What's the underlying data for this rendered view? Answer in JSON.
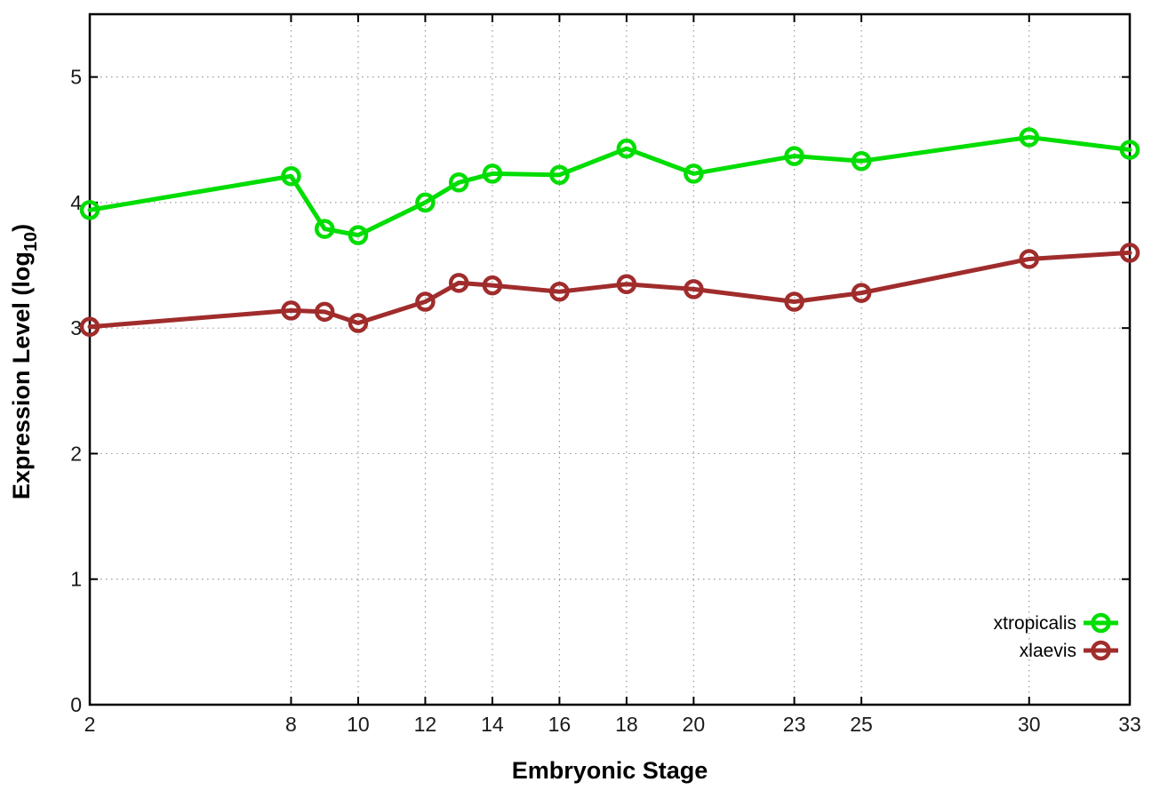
{
  "chart_data": {
    "type": "line",
    "title": "",
    "xlabel": "Embryonic Stage",
    "ylabel_plain": "Expression Level (log10)",
    "ylabel_parts": {
      "prefix": "Expression Level (log",
      "subscript": "10",
      "suffix": ")"
    },
    "x": [
      2,
      8,
      9,
      10,
      12,
      13,
      14,
      16,
      18,
      20,
      23,
      25,
      30,
      33
    ],
    "series": [
      {
        "name": "xtropicalis",
        "color": "#00dd00",
        "values": [
          3.94,
          4.21,
          3.79,
          3.74,
          4.0,
          4.16,
          4.23,
          4.22,
          4.43,
          4.23,
          4.37,
          4.33,
          4.52,
          4.42
        ]
      },
      {
        "name": "xlaevis",
        "color": "#a02c2c",
        "values": [
          3.01,
          3.14,
          3.13,
          3.04,
          3.21,
          3.36,
          3.34,
          3.29,
          3.35,
          3.31,
          3.21,
          3.28,
          3.55,
          3.6
        ]
      }
    ],
    "xticks": [
      2,
      8,
      10,
      12,
      14,
      16,
      18,
      20,
      23,
      25,
      30,
      33
    ],
    "yticks": [
      0,
      1,
      2,
      3,
      4,
      5
    ],
    "xlim": [
      2,
      33
    ],
    "ylim": [
      0,
      5.5
    ],
    "grid": true,
    "grid_style": "dotted",
    "marker": "open-circle",
    "legend_position": "bottom-right-inside",
    "colors": {
      "background": "#ffffff",
      "border": "#000000",
      "grid": "#9a9a9a",
      "tick_text": "#1a1a1a"
    }
  }
}
